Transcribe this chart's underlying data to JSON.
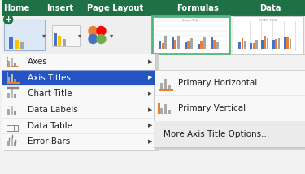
{
  "ribbon_bg": "#1e7145",
  "ribbon_tabs": [
    "Home",
    "Insert",
    "Page Layout",
    "Formulas",
    "Data"
  ],
  "ribbon_tab_x": [
    18,
    72,
    140,
    242,
    332
  ],
  "menu_bg": "#ffffff",
  "menu_highlight_bg": "#2455c3",
  "menu_items": [
    "Axes",
    "Axis Titles",
    "Chart Title",
    "Data Labels",
    "Data Table",
    "Error Bars"
  ],
  "submenu_items": [
    "Primary Horizontal",
    "Primary Vertical",
    "More Axis Title Options..."
  ],
  "thumb1_border": "#50b87a",
  "thumb2_border": "#cccccc",
  "fig_bg": "#f2f2f2",
  "menu_border": "#c8c8c8",
  "menu_shadow": "#e0e0e0"
}
